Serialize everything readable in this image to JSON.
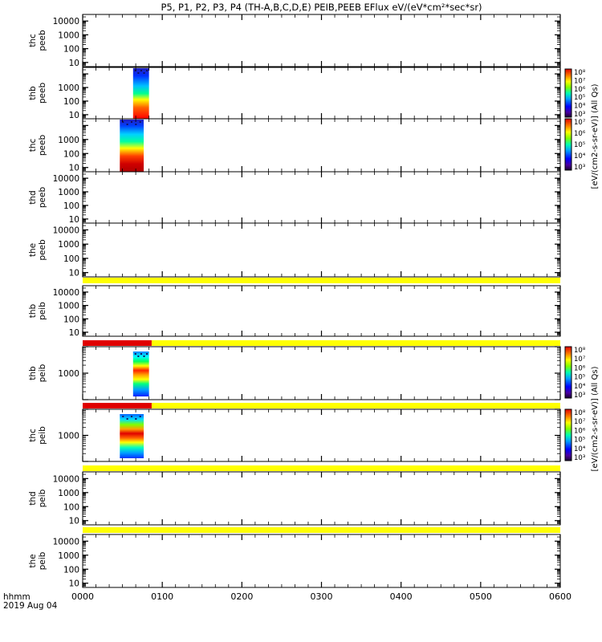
{
  "chart_data": {
    "type": "heatmap",
    "title": "P5, P1, P2, P3, P4 (TH-A,B,C,D,E) PEIB,PEEB EFlux eV/(eV*cm²*sec*sr)",
    "x_ticks": [
      "0000",
      "0100",
      "0200",
      "0300",
      "0400",
      "0500",
      "0600"
    ],
    "x_range": [
      "00:00",
      "06:00"
    ],
    "x_label_top": "hhmm",
    "x_label_bottom": "2019 Aug 04",
    "colorbar_labels": {
      "peeb": "[eV/(cm2-s-sr-eV)] (All Qs)",
      "peib": "[eV/(cm2-s-sr-eV)] (All Qs)"
    },
    "colorbar_ticks": {
      "thb_peeb": [
        "10³",
        "10⁴",
        "10⁵",
        "10⁶",
        "10⁷",
        "10⁸"
      ],
      "thc_peeb": [
        "10³",
        "10⁴",
        "10⁵",
        "10⁶",
        "10⁷"
      ],
      "thb_peib": [
        "10³",
        "10⁴",
        "10⁵",
        "10⁶",
        "10⁷",
        "10⁸"
      ],
      "thc_peib": [
        "10³",
        "10⁴",
        "10⁵",
        "10⁶",
        "10⁷",
        "10⁸"
      ]
    },
    "panels": [
      {
        "probe": "thc",
        "product": "peeb",
        "y_scale": "log",
        "y_ticks": [
          "10",
          "100",
          "1000",
          "10000"
        ],
        "data": []
      },
      {
        "probe": "thb",
        "product": "peeb",
        "y_scale": "log",
        "y_ticks": [
          "10",
          "100",
          "1000"
        ],
        "data": [
          {
            "start": "00:38",
            "end": "00:50",
            "flux_profile": "high at low energy (red), falling to blue above ~1000 eV"
          }
        ]
      },
      {
        "probe": "thc",
        "product": "peeb",
        "y_scale": "log",
        "y_ticks": [
          "10",
          "100",
          "1000"
        ],
        "data": [
          {
            "start": "00:28",
            "end": "00:46",
            "flux_profile": "dark red below ~30 eV, falling to blue above ~2000 eV"
          }
        ]
      },
      {
        "probe": "thd",
        "product": "peeb",
        "y_scale": "log",
        "y_ticks": [
          "10",
          "100",
          "1000",
          "10000"
        ],
        "data": []
      },
      {
        "probe": "the",
        "product": "peeb",
        "y_scale": "log",
        "y_ticks": [
          "10",
          "100",
          "1000",
          "10000"
        ],
        "data": [],
        "bottom_strip": "yellow"
      },
      {
        "probe": "thb",
        "product": "peib",
        "y_scale": "log",
        "y_ticks": [
          "10",
          "100",
          "1000",
          "10000"
        ],
        "data": [],
        "bottom_strip": "red until 00:52, then yellow"
      },
      {
        "probe": "thb",
        "product": "peib",
        "y_scale": "log",
        "y_ticks": [
          "1000"
        ],
        "data": [
          {
            "start": "00:38",
            "end": "00:50",
            "flux_profile": "red band near 1000 eV, blue at edges"
          }
        ],
        "bottom_strip": "red until 00:52, then yellow"
      },
      {
        "probe": "thc",
        "product": "peib",
        "y_scale": "log",
        "y_ticks": [
          "1000"
        ],
        "data": [
          {
            "start": "00:28",
            "end": "00:46",
            "flux_profile": "red band near 1000 eV, blue at edges"
          }
        ],
        "bottom_strip": "yellow"
      },
      {
        "probe": "thd",
        "product": "peib",
        "y_scale": "log",
        "y_ticks": [
          "10",
          "100",
          "1000",
          "10000"
        ],
        "data": [],
        "bottom_strip": "yellow"
      },
      {
        "probe": "the",
        "product": "peib",
        "y_scale": "log",
        "y_ticks": [
          "10",
          "100",
          "1000",
          "10000"
        ],
        "data": []
      }
    ]
  }
}
